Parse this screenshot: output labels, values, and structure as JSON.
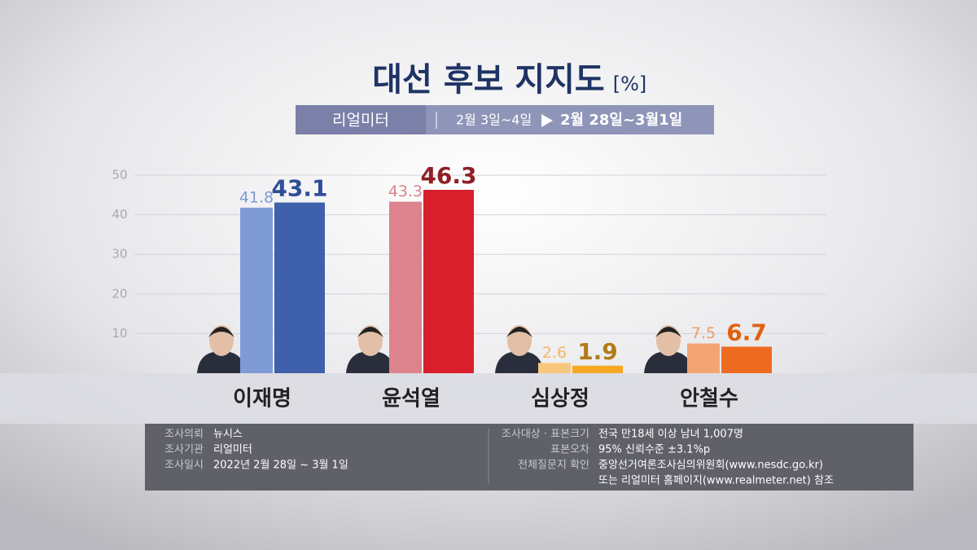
{
  "chart_data": {
    "type": "bar",
    "title": "대선 후보 지지도",
    "unit": "[%]",
    "source": "리얼미터",
    "categories": [
      "이재명",
      "윤석열",
      "심상정",
      "안철수"
    ],
    "series": [
      {
        "name": "2월 3일~4일",
        "values": [
          41.8,
          43.3,
          2.6,
          7.5
        ],
        "colors": [
          "#7f9bd6",
          "#dc838d",
          "#f8c77e",
          "#f4a374"
        ],
        "label_colors": [
          "#7f9bd6",
          "#dc838d",
          "#f3b766",
          "#f09a66"
        ]
      },
      {
        "name": "2월 28일~3월1일",
        "values": [
          43.1,
          46.3,
          1.9,
          6.7
        ],
        "colors": [
          "#3f60aa",
          "#d81f2b",
          "#f6a823",
          "#ef6b22"
        ],
        "label_colors": [
          "#2f4e98",
          "#8f1f27",
          "#b37b18",
          "#e0600f"
        ]
      }
    ],
    "ylim": [
      0,
      50
    ],
    "yticks": [
      10,
      20,
      30,
      40,
      50
    ],
    "grid": true
  },
  "footer": {
    "left": [
      [
        "조사의뢰",
        "뉴시스"
      ],
      [
        "조사기관",
        "리얼미터"
      ],
      [
        "조사일시",
        "2022년 2월 28일 ~ 3월 1일"
      ]
    ],
    "right": [
      {
        "label": "조사대상 · 표본크기",
        "lines": [
          "전국 만18세 이상 남녀 1,007명"
        ]
      },
      {
        "label": "표본오차",
        "lines": [
          "95% 신뢰수준 ±3.1%p"
        ]
      },
      {
        "label": "전체질문지 확인",
        "lines": [
          "중앙선거여론조사심의위원회(www.nesdc.go.kr)",
          "또는 리얼미터 홈페이지(www.realmeter.net) 참조"
        ]
      }
    ]
  }
}
